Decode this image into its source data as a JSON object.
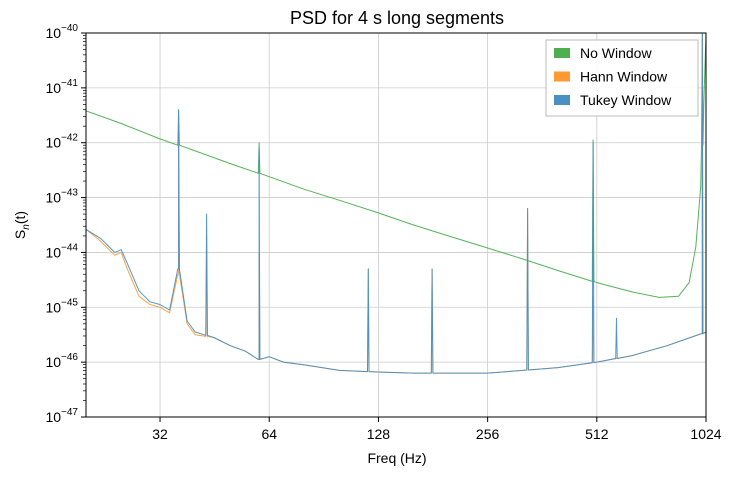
{
  "chart_data": {
    "type": "line",
    "title": "PSD for 4 s long segments",
    "xlabel": "Freq (Hz)",
    "ylabel": "S",
    "ylabel_sub": "n",
    "ylabel_suffix": "(t)",
    "x_scale": "log2",
    "y_scale": "log10",
    "xlim": [
      20,
      1024
    ],
    "ylim_exponents": [
      -47,
      -40
    ],
    "x_ticks": [
      32,
      64,
      128,
      256,
      512,
      1024
    ],
    "x_tick_labels": [
      "32",
      "64",
      "128",
      "256",
      "512",
      "1024"
    ],
    "y_tick_exponents": [
      -47,
      -46,
      -45,
      -44,
      -43,
      -42,
      -41,
      -40
    ],
    "y_tick_base": "10",
    "grid": true,
    "legend_position": "top-right",
    "colors": {
      "no_window": "#4caf50",
      "hann_window": "#ff9933",
      "tukey_window": "#4a90c2",
      "overlap": "#5a7a8c"
    },
    "series": [
      {
        "name": "No Window",
        "key": "no_window",
        "log10_points": [
          [
            20,
            -41.42
          ],
          [
            25,
            -41.65
          ],
          [
            32,
            -41.93
          ],
          [
            40,
            -42.15
          ],
          [
            50,
            -42.38
          ],
          [
            64,
            -42.62
          ],
          [
            80,
            -42.85
          ],
          [
            100,
            -43.05
          ],
          [
            128,
            -43.28
          ],
          [
            160,
            -43.5
          ],
          [
            200,
            -43.7
          ],
          [
            256,
            -43.92
          ],
          [
            320,
            -44.12
          ],
          [
            400,
            -44.33
          ],
          [
            512,
            -44.55
          ],
          [
            640,
            -44.72
          ],
          [
            760,
            -44.82
          ],
          [
            860,
            -44.8
          ],
          [
            920,
            -44.55
          ],
          [
            960,
            -43.9
          ],
          [
            990,
            -42.8
          ],
          [
            1010,
            -41.3
          ],
          [
            1024,
            -40.0
          ]
        ],
        "peaks": [
          [
            36,
            -41.4
          ],
          [
            60,
            -42.0
          ],
          [
            500,
            -41.95
          ],
          [
            1000,
            -40.0
          ]
        ]
      },
      {
        "name": "Hann Window",
        "key": "hann_window",
        "log10_points": [
          [
            20,
            -43.58
          ],
          [
            22,
            -43.8
          ],
          [
            24,
            -44.05
          ],
          [
            25,
            -44.0
          ],
          [
            26,
            -44.3
          ],
          [
            28,
            -44.8
          ],
          [
            30,
            -44.95
          ],
          [
            32,
            -45.0
          ],
          [
            34,
            -45.1
          ],
          [
            36,
            -44.4
          ],
          [
            38,
            -45.3
          ],
          [
            40,
            -45.5
          ],
          [
            45,
            -45.55
          ],
          [
            50,
            -45.7
          ],
          [
            55,
            -45.8
          ],
          [
            60,
            -45.95
          ],
          [
            64,
            -45.9
          ],
          [
            70,
            -46.0
          ],
          [
            80,
            -46.05
          ],
          [
            100,
            -46.15
          ],
          [
            128,
            -46.18
          ],
          [
            160,
            -46.2
          ],
          [
            200,
            -46.2
          ],
          [
            256,
            -46.2
          ],
          [
            320,
            -46.15
          ],
          [
            400,
            -46.1
          ],
          [
            512,
            -46.0
          ],
          [
            640,
            -45.88
          ],
          [
            800,
            -45.7
          ],
          [
            1000,
            -45.48
          ],
          [
            1024,
            -45.45
          ]
        ],
        "peaks": [
          [
            36,
            -41.9
          ],
          [
            43,
            -43.7
          ],
          [
            60,
            -44.0
          ],
          [
            120,
            -44.3
          ],
          [
            180,
            -44.3
          ],
          [
            330,
            -43.2
          ],
          [
            500,
            -44.8
          ],
          [
            1000,
            -40.1
          ]
        ]
      },
      {
        "name": "Tukey Window",
        "key": "tukey_window",
        "log10_points": [
          [
            20,
            -43.58
          ],
          [
            22,
            -43.75
          ],
          [
            24,
            -44.0
          ],
          [
            25,
            -43.95
          ],
          [
            26,
            -44.2
          ],
          [
            28,
            -44.7
          ],
          [
            30,
            -44.9
          ],
          [
            32,
            -44.95
          ],
          [
            34,
            -45.05
          ],
          [
            36,
            -44.3
          ],
          [
            38,
            -45.25
          ],
          [
            40,
            -45.45
          ],
          [
            45,
            -45.55
          ],
          [
            50,
            -45.7
          ],
          [
            55,
            -45.8
          ],
          [
            60,
            -45.95
          ],
          [
            64,
            -45.9
          ],
          [
            70,
            -46.0
          ],
          [
            80,
            -46.05
          ],
          [
            100,
            -46.15
          ],
          [
            128,
            -46.18
          ],
          [
            160,
            -46.2
          ],
          [
            200,
            -46.2
          ],
          [
            256,
            -46.2
          ],
          [
            320,
            -46.15
          ],
          [
            400,
            -46.1
          ],
          [
            512,
            -46.0
          ],
          [
            640,
            -45.88
          ],
          [
            800,
            -45.7
          ],
          [
            1000,
            -45.48
          ],
          [
            1024,
            -45.45
          ]
        ],
        "peaks": [
          [
            36,
            -41.4
          ],
          [
            43,
            -43.3
          ],
          [
            60,
            -42.1
          ],
          [
            120,
            -44.3
          ],
          [
            180,
            -44.3
          ],
          [
            330,
            -43.2
          ],
          [
            500,
            -42.0
          ],
          [
            580,
            -45.2
          ],
          [
            1000,
            -40.0
          ]
        ]
      }
    ]
  }
}
